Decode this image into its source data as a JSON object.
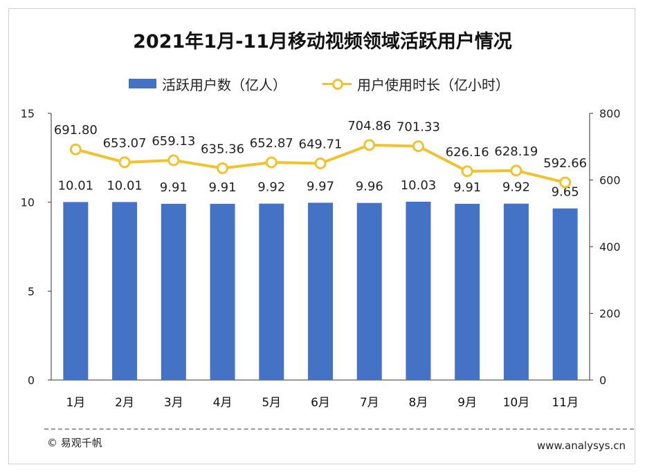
{
  "chart_data": {
    "type": "bar",
    "title": "2021年1月-11月移动视频领域活跃用户情况",
    "categories": [
      "1月",
      "2月",
      "3月",
      "4月",
      "5月",
      "6月",
      "7月",
      "8月",
      "9月",
      "10月",
      "11月"
    ],
    "series": [
      {
        "name": "活跃用户数（亿人）",
        "type": "bar",
        "axis": "left",
        "color": "#4472c4",
        "values": [
          10.01,
          10.01,
          9.91,
          9.91,
          9.92,
          9.97,
          9.96,
          10.03,
          9.91,
          9.92,
          9.65
        ],
        "labels": [
          "10.01",
          "10.01",
          "9.91",
          "9.91",
          "9.92",
          "9.97",
          "9.96",
          "10.03",
          "9.91",
          "9.92",
          "9.65"
        ]
      },
      {
        "name": "用户使用时长（亿小时）",
        "type": "line",
        "axis": "right",
        "color": "#f2c12e",
        "values": [
          691.8,
          653.07,
          659.13,
          635.36,
          652.87,
          649.71,
          704.86,
          701.33,
          626.16,
          628.19,
          592.66
        ],
        "labels": [
          "691.80",
          "653.07",
          "659.13",
          "635.36",
          "652.87",
          "649.71",
          "704.86",
          "701.33",
          "626.16",
          "628.19",
          "592.66"
        ]
      }
    ],
    "y_left": {
      "ylim": [
        0,
        15
      ],
      "ticks": [
        "0",
        "5",
        "10",
        "15"
      ],
      "tick_values": [
        0,
        5,
        10,
        15
      ]
    },
    "y_right": {
      "ylim": [
        0,
        800
      ],
      "ticks": [
        "0",
        "200",
        "400",
        "600",
        "800"
      ],
      "tick_values": [
        0,
        200,
        400,
        600,
        800
      ]
    },
    "legend_position": "top",
    "grid": false
  },
  "footer": {
    "copyright": "© 易观千帆",
    "site": "www.analysys.cn"
  }
}
